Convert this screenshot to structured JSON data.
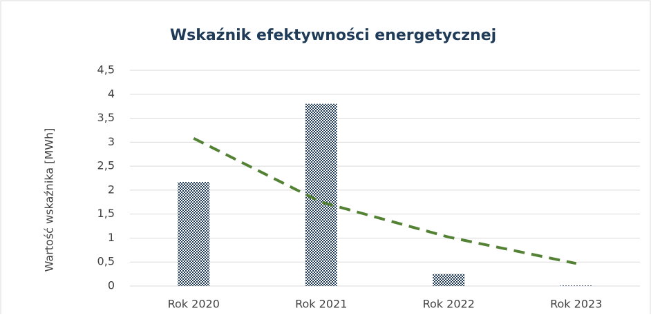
{
  "chart_data": {
    "type": "bar",
    "title": "Wskaźnik efektywności energetycznej",
    "y_label": "Wartość wskaźnika [MWh]",
    "categories": [
      "Rok 2020",
      "Rok 2021",
      "Rok 2022",
      "Rok 2023"
    ],
    "values": [
      2.17,
      3.8,
      0.25,
      0.01
    ],
    "color": "#1f3b57",
    "trendline": {
      "values": [
        3.08,
        1.75,
        1.02,
        0.47
      ],
      "color": "#548235"
    },
    "ylim": [
      0,
      4.5
    ],
    "yticks": [
      0,
      {
        "value": 0.5,
        "label": "0,5"
      },
      1,
      {
        "value": 1.5,
        "label": "1,5"
      },
      2,
      {
        "value": 2.5,
        "label": "2,5"
      },
      3,
      {
        "value": 3.5,
        "label": "3,5"
      },
      4,
      {
        "value": 4.5,
        "label": "4,5"
      }
    ],
    "grid": true
  }
}
